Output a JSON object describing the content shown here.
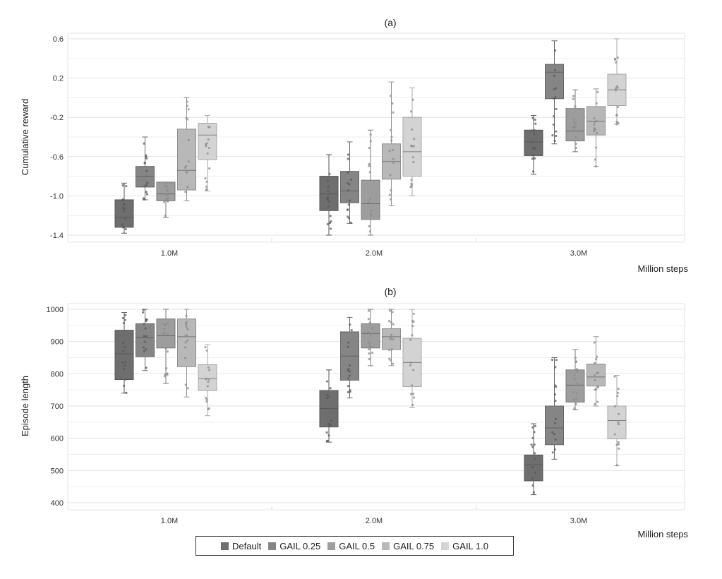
{
  "legend": [
    {
      "name": "Default",
      "color": "#6e6e6e"
    },
    {
      "name": "GAIL 0.25",
      "color": "#858585"
    },
    {
      "name": "GAIL 0.5",
      "color": "#9d9d9d"
    },
    {
      "name": "GAIL 0.75",
      "color": "#b8b8b8"
    },
    {
      "name": "GAIL 1.0",
      "color": "#d3d3d3"
    }
  ],
  "chart_data": [
    {
      "type": "box",
      "title": "(a)",
      "xlabel": "Million steps",
      "ylabel": "Cumulative reward",
      "categories": [
        "1.0M",
        "2.0M",
        "3.0M"
      ],
      "ylim": [
        -1.4,
        0.6
      ],
      "yticks": [
        "0.6",
        "0.2",
        "-0.2",
        "-0.6",
        "-1.0",
        "-1.4"
      ],
      "grid": true,
      "series": [
        {
          "name": "Default",
          "boxes": [
            {
              "whisker_low": -1.38,
              "q1": -1.32,
              "median": -1.22,
              "q3": -1.04,
              "whisker_high": -0.87
            },
            {
              "whisker_low": -1.4,
              "q1": -1.15,
              "median": -0.98,
              "q3": -0.8,
              "whisker_high": -0.58
            },
            {
              "whisker_low": -0.78,
              "q1": -0.59,
              "median": -0.45,
              "q3": -0.33,
              "whisker_high": -0.18
            }
          ]
        },
        {
          "name": "GAIL 0.25",
          "boxes": [
            {
              "whisker_low": -1.04,
              "q1": -0.91,
              "median": -0.8,
              "q3": -0.7,
              "whisker_high": -0.4
            },
            {
              "whisker_low": -1.28,
              "q1": -1.07,
              "median": -0.95,
              "q3": -0.75,
              "whisker_high": -0.45
            },
            {
              "whisker_low": -0.47,
              "q1": -0.01,
              "median": 0.26,
              "q3": 0.34,
              "whisker_high": 0.58
            }
          ]
        },
        {
          "name": "GAIL 0.5",
          "boxes": [
            {
              "whisker_low": -1.22,
              "q1": -1.05,
              "median": -0.98,
              "q3": -0.86,
              "whisker_high": -0.86
            },
            {
              "whisker_low": -1.4,
              "q1": -1.24,
              "median": -1.08,
              "q3": -0.84,
              "whisker_high": -0.33
            },
            {
              "whisker_low": -0.55,
              "q1": -0.44,
              "median": -0.34,
              "q3": -0.11,
              "whisker_high": 0.08
            }
          ]
        },
        {
          "name": "GAIL 0.75",
          "boxes": [
            {
              "whisker_low": -1.05,
              "q1": -0.94,
              "median": -0.74,
              "q3": -0.32,
              "whisker_high": 0.0
            },
            {
              "whisker_low": -1.1,
              "q1": -0.83,
              "median": -0.65,
              "q3": -0.47,
              "whisker_high": 0.16
            },
            {
              "whisker_low": -0.7,
              "q1": -0.38,
              "median": -0.24,
              "q3": -0.09,
              "whisker_high": 0.09
            }
          ]
        },
        {
          "name": "GAIL 1.0",
          "boxes": [
            {
              "whisker_low": -0.95,
              "q1": -0.63,
              "median": -0.38,
              "q3": -0.26,
              "whisker_high": -0.18
            },
            {
              "whisker_low": -1.0,
              "q1": -0.8,
              "median": -0.55,
              "q3": -0.2,
              "whisker_high": 0.1
            },
            {
              "whisker_low": -0.27,
              "q1": -0.08,
              "median": 0.08,
              "q3": 0.24,
              "whisker_high": 0.6
            }
          ]
        }
      ]
    },
    {
      "type": "box",
      "title": "(b)",
      "xlabel": "Million steps",
      "ylabel": "Episode length",
      "categories": [
        "1.0M",
        "2.0M",
        "3.0M"
      ],
      "ylim": [
        400,
        1000
      ],
      "yticks": [
        "1000",
        "900",
        "800",
        "700",
        "600",
        "500",
        "400"
      ],
      "grid": true,
      "series": [
        {
          "name": "Default",
          "boxes": [
            {
              "whisker_low": 740,
              "q1": 782,
              "median": 862,
              "q3": 935,
              "whisker_high": 990
            },
            {
              "whisker_low": 588,
              "q1": 635,
              "median": 692,
              "q3": 748,
              "whisker_high": 812
            },
            {
              "whisker_low": 425,
              "q1": 468,
              "median": 518,
              "q3": 548,
              "whisker_high": 645
            }
          ]
        },
        {
          "name": "GAIL 0.25",
          "boxes": [
            {
              "whisker_low": 810,
              "q1": 853,
              "median": 912,
              "q3": 955,
              "whisker_high": 1000
            },
            {
              "whisker_low": 725,
              "q1": 780,
              "median": 855,
              "q3": 930,
              "whisker_high": 975
            },
            {
              "whisker_low": 535,
              "q1": 580,
              "median": 632,
              "q3": 700,
              "whisker_high": 850
            }
          ]
        },
        {
          "name": "GAIL 0.5",
          "boxes": [
            {
              "whisker_low": 770,
              "q1": 880,
              "median": 918,
              "q3": 970,
              "whisker_high": 1000
            },
            {
              "whisker_low": 825,
              "q1": 880,
              "median": 925,
              "q3": 955,
              "whisker_high": 1000
            },
            {
              "whisker_low": 688,
              "q1": 712,
              "median": 765,
              "q3": 812,
              "whisker_high": 875
            }
          ]
        },
        {
          "name": "GAIL 0.75",
          "boxes": [
            {
              "whisker_low": 728,
              "q1": 822,
              "median": 915,
              "q3": 970,
              "whisker_high": 1000
            },
            {
              "whisker_low": 825,
              "q1": 875,
              "median": 915,
              "q3": 940,
              "whisker_high": 1000
            },
            {
              "whisker_low": 700,
              "q1": 762,
              "median": 790,
              "q3": 830,
              "whisker_high": 915
            }
          ]
        },
        {
          "name": "GAIL 1.0",
          "boxes": [
            {
              "whisker_low": 670,
              "q1": 748,
              "median": 785,
              "q3": 828,
              "whisker_high": 890
            },
            {
              "whisker_low": 695,
              "q1": 760,
              "median": 835,
              "q3": 910,
              "whisker_high": 1000
            },
            {
              "whisker_low": 515,
              "q1": 598,
              "median": 655,
              "q3": 700,
              "whisker_high": 795
            }
          ]
        }
      ]
    }
  ]
}
